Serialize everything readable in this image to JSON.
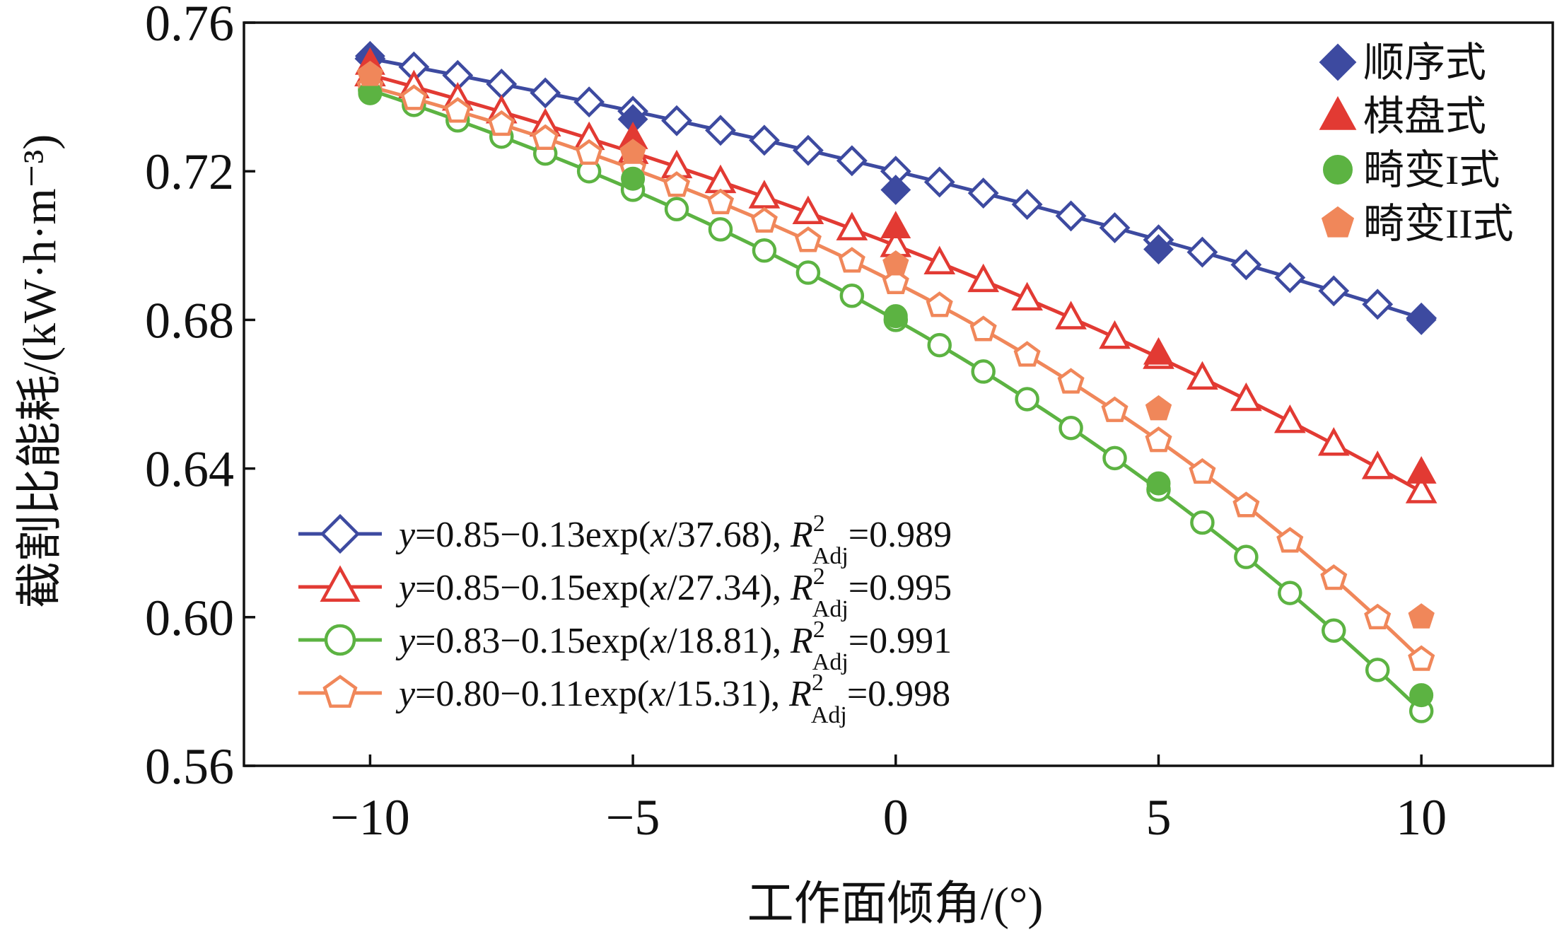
{
  "chart_data": {
    "type": "scatter",
    "xlabel": "工作面倾角/(°)",
    "ylabel": "截割比能耗/(kW·h·m⁻³)",
    "xlim": [
      -12.4,
      12.5
    ],
    "ylim": [
      0.56,
      0.76
    ],
    "x_ticks": [
      -10,
      -5,
      0,
      5,
      10
    ],
    "x_tick_labels": [
      "−10",
      "−5",
      "0",
      "5",
      "10"
    ],
    "y_ticks": [
      0.56,
      0.6,
      0.64,
      0.68,
      0.72,
      0.76
    ],
    "y_tick_labels": [
      "0.56",
      "0.60",
      "0.64",
      "0.68",
      "0.72",
      "0.76"
    ],
    "legend_position": "top-right",
    "series": [
      {
        "name": "顺序式",
        "color": "#3d4aa0",
        "marker": "diamond",
        "x": [
          -10,
          -5,
          0,
          5,
          10
        ],
        "values": [
          0.751,
          0.734,
          0.715,
          0.699,
          0.68
        ]
      },
      {
        "name": "棋盘式",
        "color": "#e23a33",
        "marker": "triangle",
        "x": [
          -10,
          -5,
          0,
          5,
          10
        ],
        "values": [
          0.749,
          0.729,
          0.705,
          0.671,
          0.639
        ]
      },
      {
        "name": "畸变I式",
        "color": "#5cb342",
        "marker": "circle",
        "x": [
          -10,
          -5,
          0,
          5,
          10
        ],
        "values": [
          0.741,
          0.718,
          0.681,
          0.636,
          0.579
        ]
      },
      {
        "name": "畸变II式",
        "color": "#f0875a",
        "marker": "pentagon",
        "x": [
          -10,
          -5,
          0,
          5,
          10
        ],
        "values": [
          0.746,
          0.725,
          0.695,
          0.656,
          0.6
        ]
      }
    ],
    "fits": [
      {
        "color": "#3d4aa0",
        "marker": "diamond",
        "a": 0.85,
        "b": 0.13,
        "c": 37.68,
        "eq_pre": "=0.85−0.13exp(",
        "eq_post": "/37.68), ",
        "r2_val": "=0.989"
      },
      {
        "color": "#e23a33",
        "marker": "triangle",
        "a": 0.85,
        "b": 0.15,
        "c": 27.34,
        "eq_pre": "=0.85−0.15exp(",
        "eq_post": "/27.34), ",
        "r2_val": "=0.995"
      },
      {
        "color": "#5cb342",
        "marker": "circle",
        "a": 0.83,
        "b": 0.15,
        "c": 18.81,
        "eq_pre": "=0.83−0.15exp(",
        "eq_post": "/18.81), ",
        "r2_val": "=0.991"
      },
      {
        "color": "#f0875a",
        "marker": "pentagon",
        "a": 0.8,
        "b": 0.11,
        "c": 15.31,
        "eq_pre": "=0.80−0.11exp(",
        "eq_post": "/15.31), ",
        "r2_val": "=0.998"
      }
    ],
    "fit_var_y": "y",
    "fit_var_x": "x",
    "r2_symbol": "R",
    "r2_sup": "2",
    "r2_sub": "Adj",
    "fit_x_range": [
      -10,
      10
    ],
    "fit_marker_count": 25
  }
}
